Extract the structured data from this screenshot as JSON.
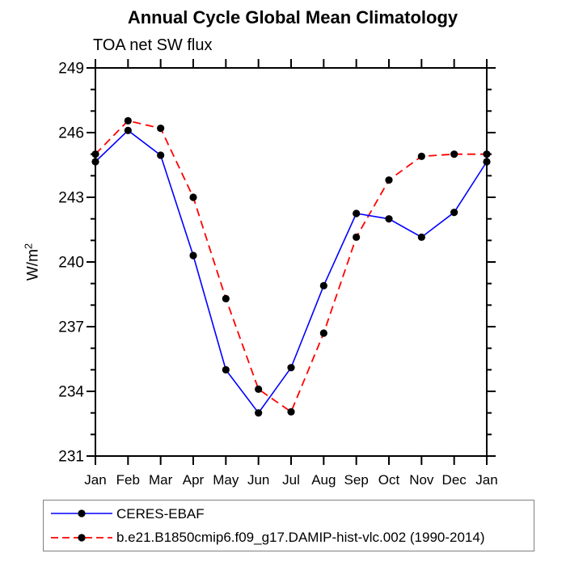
{
  "title": "Annual Cycle Global Mean Climatology",
  "subtitle": "TOA net SW flux",
  "y_axis": {
    "label_base": "W/m",
    "label_sup": "2"
  },
  "chart_data": {
    "type": "line",
    "title": "Annual Cycle Global Mean Climatology",
    "subtitle": "TOA net SW flux",
    "ylabel": "W/m²",
    "xlabel": "",
    "categories": [
      "Jan",
      "Feb",
      "Mar",
      "Apr",
      "May",
      "Jun",
      "Jul",
      "Aug",
      "Sep",
      "Oct",
      "Nov",
      "Dec",
      "Jan"
    ],
    "ylim": [
      231,
      249
    ],
    "yticks_major": [
      231,
      234,
      237,
      240,
      243,
      246,
      249
    ],
    "ytick_minor_step": 1,
    "grid": false,
    "legend_position": "bottom-left-box",
    "frame": true,
    "series": [
      {
        "name": "CERES-EBAF",
        "color": "#0000ff",
        "line_style": "solid",
        "marker": "black-dot",
        "values": [
          244.65,
          246.1,
          244.95,
          240.3,
          235.0,
          233.0,
          235.1,
          238.9,
          242.25,
          242.0,
          241.15,
          242.3,
          244.65
        ]
      },
      {
        "name": "b.e21.B1850cmip6.f09_g17.DAMIP-hist-vlc.002 (1990-2014)",
        "color": "#ff0000",
        "line_style": "dashed",
        "marker": "black-dot",
        "values": [
          245.0,
          246.55,
          246.2,
          243.0,
          238.3,
          234.1,
          233.05,
          236.7,
          241.15,
          243.8,
          244.9,
          245.0,
          245.0
        ]
      }
    ],
    "marker_color": "#000000",
    "axis_color": "#000000"
  }
}
